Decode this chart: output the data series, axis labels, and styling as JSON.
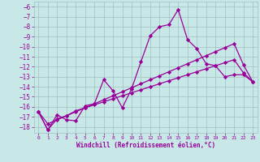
{
  "xlabel": "Windchill (Refroidissement éolien,°C)",
  "x_values": [
    0,
    1,
    2,
    3,
    4,
    5,
    6,
    7,
    8,
    9,
    10,
    11,
    12,
    13,
    14,
    15,
    16,
    17,
    18,
    19,
    20,
    21,
    22,
    23
  ],
  "line1_y": [
    -16.5,
    -18.3,
    -16.8,
    -17.3,
    -17.4,
    -15.9,
    -15.7,
    -13.3,
    -14.4,
    -16.1,
    -14.2,
    -11.5,
    -8.9,
    -8.0,
    -7.8,
    -6.3,
    -9.3,
    -10.2,
    -11.7,
    -11.9,
    -13.0,
    -12.8,
    -12.8,
    -13.5
  ],
  "line2_y": [
    -16.5,
    -18.3,
    -17.2,
    -16.9,
    -16.4,
    -16.1,
    -15.8,
    -15.5,
    -15.2,
    -14.9,
    -14.6,
    -14.3,
    -14.0,
    -13.7,
    -13.4,
    -13.1,
    -12.8,
    -12.5,
    -12.2,
    -11.9,
    -11.6,
    -11.3,
    -12.6,
    -13.5
  ],
  "line3_y": [
    -16.5,
    -17.7,
    -17.3,
    -16.9,
    -16.5,
    -16.1,
    -15.7,
    -15.3,
    -14.9,
    -14.5,
    -14.1,
    -13.7,
    -13.3,
    -12.9,
    -12.5,
    -12.1,
    -11.7,
    -11.3,
    -10.9,
    -10.5,
    -10.1,
    -9.7,
    -11.8,
    -13.5
  ],
  "line_color": "#990099",
  "bg_color": "#c8e8e8",
  "grid_color": "#a0c0c0",
  "ylim_min": -18.6,
  "ylim_max": -5.5,
  "xlim_min": -0.5,
  "xlim_max": 23.5,
  "yticks": [
    -6,
    -7,
    -8,
    -9,
    -10,
    -11,
    -12,
    -13,
    -14,
    -15,
    -16,
    -17,
    -18
  ],
  "xticks": [
    0,
    1,
    2,
    3,
    4,
    5,
    6,
    7,
    8,
    9,
    10,
    11,
    12,
    13,
    14,
    15,
    16,
    17,
    18,
    19,
    20,
    21,
    22,
    23
  ],
  "marker": "D",
  "marker_size": 2.2,
  "linewidth": 0.9
}
